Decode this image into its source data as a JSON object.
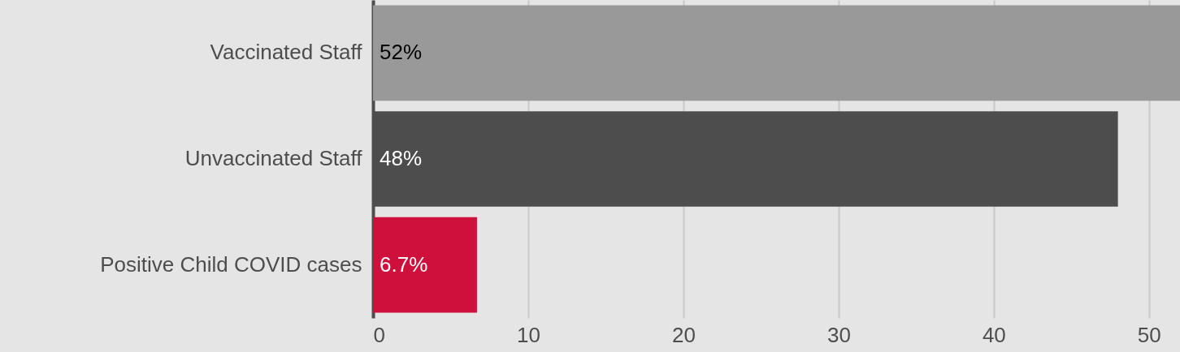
{
  "chart_data": {
    "type": "bar",
    "orientation": "horizontal",
    "categories": [
      "Vaccinated Staff",
      "Unvaccinated Staff",
      "Positive Child COVID cases"
    ],
    "values": [
      52,
      48,
      6.7
    ],
    "colors": [
      "#999999",
      "#4d4d4d",
      "#d0103c"
    ],
    "value_labels": [
      "52%",
      "48%",
      "6.7%"
    ],
    "xlim": [
      0,
      52
    ],
    "xticks": [
      0,
      10,
      20,
      30,
      40,
      50
    ],
    "grid": "x"
  }
}
